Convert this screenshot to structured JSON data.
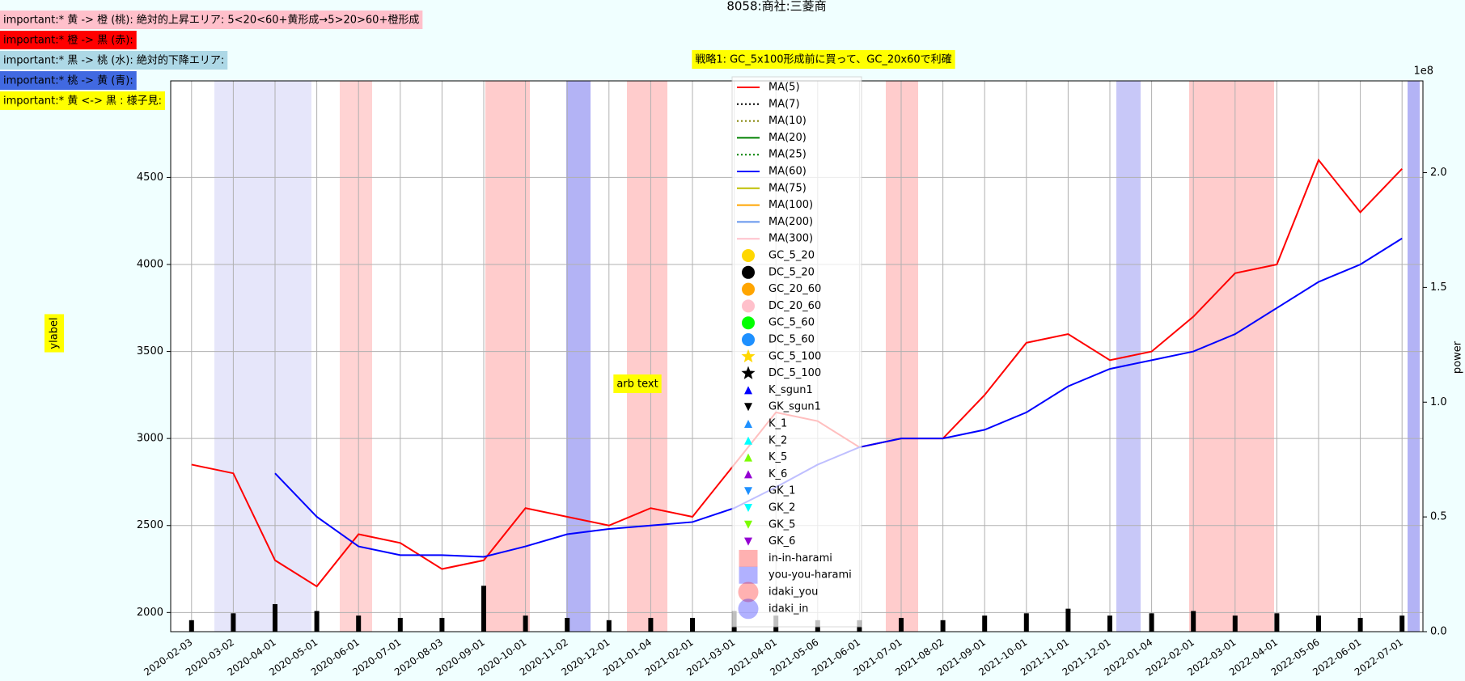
{
  "chart_data": {
    "type": "line",
    "title": "8058:商社:三菱商",
    "ylabel": {
      "text": "ylabel",
      "color": "#ffff00"
    },
    "y2label": "power",
    "y2_offset_label": "1e8",
    "annotations": [
      {
        "text": "important:* 黄 -> 橙 (桃): 絶対的上昇エリア: 5<20<60+黄形成→5>20>60+橙形成",
        "color": "#ffc0cb"
      },
      {
        "text": "important:* 橙 -> 黒 (赤):",
        "color": "#ff0000"
      },
      {
        "text": "important:* 黒 -> 桃 (水): 絶対的下降エリア:",
        "color": "#add8e6"
      },
      {
        "text": "important:* 桃 -> 黄 (青):",
        "color": "#4169e1"
      },
      {
        "text": "important:* 黄 <-> 黒 : 様子見:",
        "color": "#ffff00"
      }
    ],
    "strategy_note": {
      "text": "戦略1: GC_5x100形成前に買って、GC_20x60で利確",
      "color": "#ffff00"
    },
    "arb_text": {
      "text": "arb text",
      "color": "#ffff00"
    },
    "categories": [
      "2020-02-03",
      "2020-03-02",
      "2020-04-01",
      "2020-05-01",
      "2020-06-01",
      "2020-07-01",
      "2020-08-03",
      "2020-09-01",
      "2020-10-01",
      "2020-11-02",
      "2020-12-01",
      "2021-01-04",
      "2021-02-01",
      "2021-03-01",
      "2021-04-01",
      "2021-05-06",
      "2021-06-01",
      "2021-07-01",
      "2021-08-02",
      "2021-09-01",
      "2021-10-01",
      "2021-11-01",
      "2021-12-01",
      "2022-01-04",
      "2022-02-01",
      "2022-03-01",
      "2022-04-01",
      "2022-05-06",
      "2022-06-01",
      "2022-07-01"
    ],
    "ylim": [
      1890,
      5055
    ],
    "yticks": [
      2000,
      2500,
      3000,
      3500,
      4000,
      4500
    ],
    "y2lim": [
      0,
      2.4
    ],
    "y2ticks": [
      {
        "value": 0,
        "label": "0.0"
      },
      {
        "value": 0.5,
        "label": "0.5"
      },
      {
        "value": 1,
        "label": "1.0"
      },
      {
        "value": 1.5,
        "label": "1.5"
      },
      {
        "value": 2,
        "label": "2.0"
      }
    ],
    "grid": true,
    "volume": {
      "axis": "y2",
      "color": "#000000",
      "values": [
        0.05,
        0.08,
        0.12,
        0.09,
        0.07,
        0.06,
        0.06,
        0.2,
        0.07,
        0.06,
        0.05,
        0.06,
        0.06,
        0.09,
        0.07,
        0.05,
        0.05,
        0.06,
        0.05,
        0.07,
        0.08,
        0.1,
        0.07,
        0.08,
        0.09,
        0.07,
        0.08,
        0.07,
        0.06,
        0.07
      ]
    },
    "series": [
      {
        "name": "MA(5)",
        "color": "#ff0000",
        "marker": "line",
        "values": [
          2850,
          2800,
          2300,
          2150,
          2450,
          2400,
          2250,
          2300,
          2600,
          2550,
          2500,
          2600,
          2550,
          2850,
          3150,
          3100,
          2950,
          3000,
          3000,
          3250,
          3550,
          3600,
          3450,
          3500,
          3700,
          3950,
          4000,
          4600,
          4300,
          4550
        ]
      },
      {
        "name": "MA(7)",
        "color": "#000000",
        "marker": "dotted"
      },
      {
        "name": "MA(10)",
        "color": "#808000",
        "marker": "dotted"
      },
      {
        "name": "MA(20)",
        "color": "#008000",
        "marker": "line"
      },
      {
        "name": "MA(25)",
        "color": "#008000",
        "marker": "dotted"
      },
      {
        "name": "MA(60)",
        "color": "#0000ff",
        "marker": "line",
        "values": [
          null,
          null,
          2800,
          2550,
          2380,
          2330,
          2330,
          2320,
          2380,
          2450,
          2480,
          2500,
          2520,
          2600,
          2720,
          2850,
          2950,
          3000,
          3000,
          3050,
          3150,
          3300,
          3400,
          3450,
          3500,
          3600,
          3750,
          3900,
          4000,
          4150
        ]
      },
      {
        "name": "MA(75)",
        "color": "#bfbf00",
        "marker": "line"
      },
      {
        "name": "MA(100)",
        "color": "#ffa500",
        "marker": "line"
      },
      {
        "name": "MA(200)",
        "color": "#6495ed",
        "marker": "line"
      },
      {
        "name": "MA(300)",
        "color": "#ffc0cb",
        "marker": "line"
      },
      {
        "name": "GC_5_20",
        "color": "#ffd700",
        "marker": "circle"
      },
      {
        "name": "DC_5_20",
        "color": "#000000",
        "marker": "circle"
      },
      {
        "name": "GC_20_60",
        "color": "#ffa500",
        "marker": "circle"
      },
      {
        "name": "DC_20_60",
        "color": "#ffc0cb",
        "marker": "circle"
      },
      {
        "name": "GC_5_60",
        "color": "#00ff00",
        "marker": "circle"
      },
      {
        "name": "DC_5_60",
        "color": "#1e90ff",
        "marker": "circle"
      },
      {
        "name": "GC_5_100",
        "color": "#ffd700",
        "marker": "star"
      },
      {
        "name": "DC_5_100",
        "color": "#000000",
        "marker": "star"
      },
      {
        "name": "K_sgun1",
        "color": "#0000ff",
        "marker": "tri-up"
      },
      {
        "name": "GK_sgun1",
        "color": "#000000",
        "marker": "tri-down"
      },
      {
        "name": "K_1",
        "color": "#1e90ff",
        "marker": "tri-up"
      },
      {
        "name": "K_2",
        "color": "#00ffff",
        "marker": "tri-up"
      },
      {
        "name": "K_5",
        "color": "#7cfc00",
        "marker": "tri-up"
      },
      {
        "name": "K_6",
        "color": "#9400d3",
        "marker": "tri-up"
      },
      {
        "name": "GK_1",
        "color": "#1e90ff",
        "marker": "tri-down"
      },
      {
        "name": "GK_2",
        "color": "#00ffff",
        "marker": "tri-down"
      },
      {
        "name": "GK_5",
        "color": "#7cfc00",
        "marker": "tri-down"
      },
      {
        "name": "GK_6",
        "color": "#9400d3",
        "marker": "tri-down"
      },
      {
        "name": "in-in-harami",
        "color": "#ff0000",
        "marker": "square"
      },
      {
        "name": "you-you-harami",
        "color": "#0000ff",
        "marker": "square"
      },
      {
        "name": "idaki_you",
        "color": "#ff0000",
        "marker": "bigcircle"
      },
      {
        "name": "idaki_in",
        "color": "#0000ff",
        "marker": "bigcircle"
      }
    ]
  }
}
